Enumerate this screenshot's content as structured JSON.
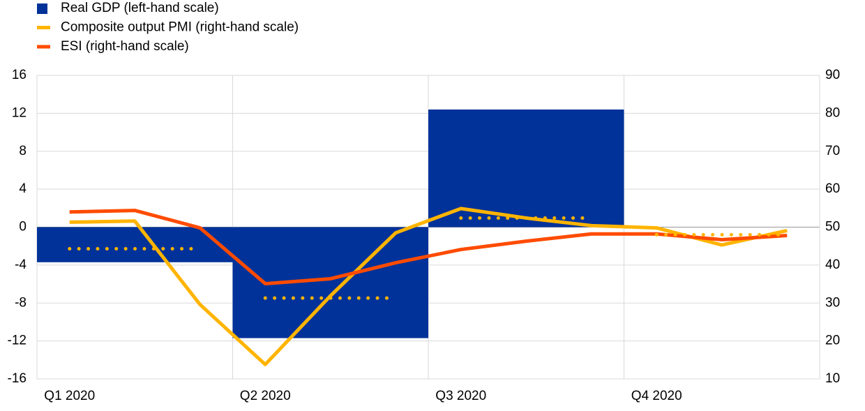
{
  "chart_data": {
    "type": "combo",
    "categories": [
      "Q1 2020",
      null,
      null,
      "Q2 2020",
      null,
      null,
      "Q3 2020",
      null,
      null,
      "Q4 2020",
      null,
      null
    ],
    "ylim": [
      -16,
      16
    ],
    "yticks": [
      -16,
      -12,
      -8,
      -4,
      0,
      4,
      8,
      12,
      16
    ],
    "y2lim": [
      10,
      90
    ],
    "y2ticks": [
      10,
      20,
      30,
      40,
      50,
      60,
      70,
      80,
      90
    ],
    "grid": true,
    "legend": "top-left",
    "series": [
      {
        "name": "Real GDP (left-hand scale)",
        "type": "bar",
        "color": "#003299",
        "values": [
          null,
          -3.7,
          null,
          null,
          -11.7,
          null,
          null,
          12.4,
          null,
          null,
          null,
          null
        ]
      },
      {
        "name": "Composite output PMI (right-hand scale)",
        "type": "line",
        "axis": "y2",
        "color": "#ffb400",
        "values": [
          51.3,
          51.6,
          29.6,
          13.8,
          31.9,
          48.5,
          54.9,
          52.4,
          50.4,
          49.8,
          45.3,
          49.1
        ]
      },
      {
        "name": "ESI (right-hand scale)",
        "type": "line",
        "axis": "y2",
        "color": "#ff4b00",
        "values": [
          54.0,
          54.4,
          49.8,
          35.1,
          36.4,
          40.6,
          44.1,
          46.3,
          48.2,
          48.2,
          46.7,
          47.8
        ]
      },
      {
        "type": "dotted",
        "axis": "y2",
        "color": "#ffb400",
        "values": [
          null,
          44.3,
          null,
          null,
          31.3,
          null,
          null,
          52.4,
          null,
          null,
          48.0,
          null
        ]
      }
    ]
  }
}
